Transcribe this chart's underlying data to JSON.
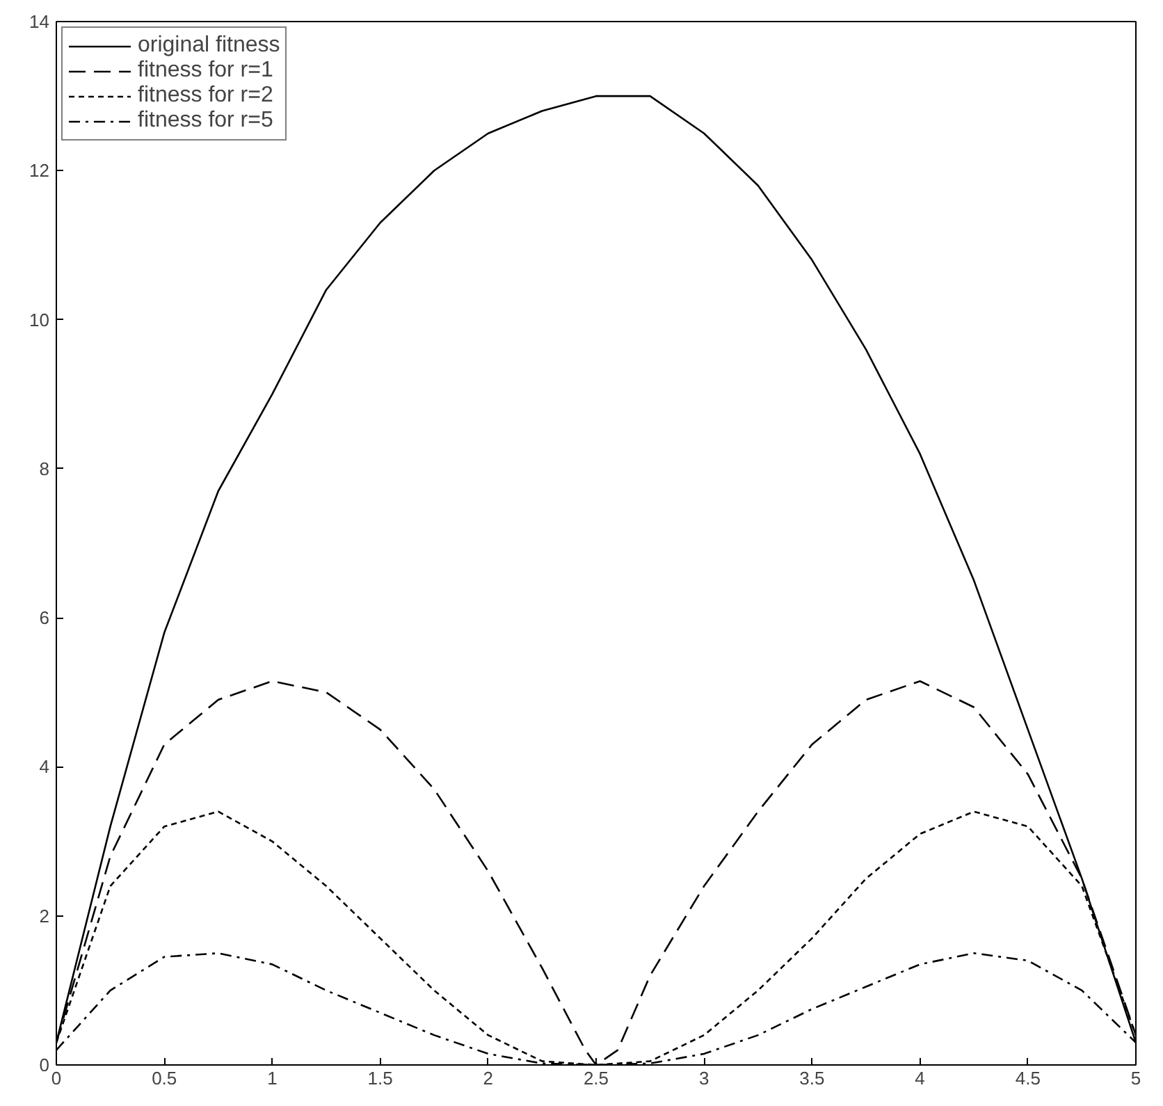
{
  "chart_data": {
    "type": "line",
    "xlim": [
      0,
      5
    ],
    "ylim": [
      0,
      14
    ],
    "xticks": [
      0,
      0.5,
      1,
      1.5,
      2,
      2.5,
      3,
      3.5,
      4,
      4.5,
      5
    ],
    "yticks": [
      0,
      2,
      4,
      6,
      8,
      10,
      12,
      14
    ],
    "x": [
      0,
      0.25,
      0.5,
      0.75,
      1,
      1.25,
      1.5,
      1.75,
      2,
      2.25,
      2.5,
      2.75,
      3,
      3.25,
      3.5,
      3.75,
      4,
      4.25,
      4.5,
      4.75,
      5
    ],
    "grid": false,
    "legend": "top left",
    "marker": "none",
    "series": [
      {
        "name": "original fitness",
        "color": "#000000",
        "line_style": "solid",
        "values": [
          0.3,
          3.2,
          5.8,
          7.7,
          9.0,
          10.4,
          11.3,
          12.0,
          12.5,
          12.8,
          13.0,
          13.0,
          12.5,
          11.8,
          10.8,
          9.6,
          8.2,
          6.5,
          4.5,
          2.5,
          0.3
        ]
      },
      {
        "name": "fitness for r=1",
        "color": "#000000",
        "line_style": "dashed",
        "x": [
          0,
          0.25,
          0.5,
          0.75,
          1,
          1.25,
          1.5,
          1.75,
          2,
          2.25,
          2.45,
          2.5,
          2.6,
          2.75,
          3,
          3.25,
          3.5,
          3.75,
          4,
          4.25,
          4.5,
          4.75,
          5
        ],
        "values": [
          0.3,
          2.8,
          4.3,
          4.9,
          5.15,
          5.0,
          4.5,
          3.7,
          2.6,
          1.3,
          0.2,
          0,
          0.2,
          1.2,
          2.4,
          3.4,
          4.3,
          4.9,
          5.15,
          4.8,
          3.9,
          2.5,
          0.4
        ]
      },
      {
        "name": "fitness for r=2",
        "color": "#000000",
        "line_style": "dotted",
        "values": [
          0.3,
          2.4,
          3.2,
          3.4,
          3.0,
          2.4,
          1.7,
          1.0,
          0.4,
          0.05,
          0,
          0.05,
          0.4,
          1.0,
          1.7,
          2.5,
          3.1,
          3.4,
          3.2,
          2.4,
          0.4
        ]
      },
      {
        "name": "fitness for r=5",
        "color": "#000000",
        "line_style": "dashdot",
        "values": [
          0.2,
          1.0,
          1.45,
          1.5,
          1.35,
          1.0,
          0.7,
          0.4,
          0.15,
          0.02,
          0,
          0.02,
          0.15,
          0.4,
          0.75,
          1.05,
          1.35,
          1.5,
          1.4,
          1.0,
          0.3
        ]
      }
    ]
  }
}
